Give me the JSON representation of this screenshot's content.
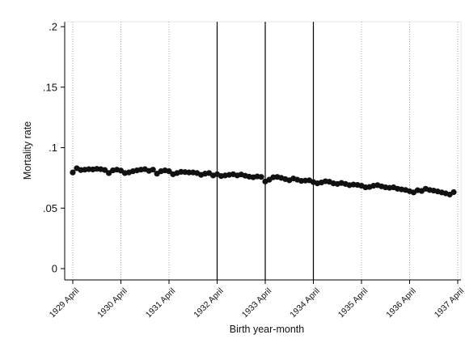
{
  "chart_data": {
    "type": "scatter",
    "title": "",
    "xlabel": "Birth year-month",
    "ylabel": "Mortality rate",
    "ylim": [
      0,
      0.2
    ],
    "y_ticks": [
      {
        "value": 0,
        "label": "0"
      },
      {
        "value": 0.05,
        "label": ".05"
      },
      {
        "value": 0.1,
        "label": ".1"
      },
      {
        "value": 0.15,
        "label": ".15"
      },
      {
        "value": 0.2,
        "label": ".2"
      }
    ],
    "x_ticks": [
      {
        "value": 0,
        "label": "1929 April"
      },
      {
        "value": 12,
        "label": "1930 April"
      },
      {
        "value": 24,
        "label": "1931 April"
      },
      {
        "value": 36,
        "label": "1932 April"
      },
      {
        "value": 48,
        "label": "1933 April"
      },
      {
        "value": 60,
        "label": "1934 April"
      },
      {
        "value": 72,
        "label": "1935 April"
      },
      {
        "value": 84,
        "label": "1936 April"
      },
      {
        "value": 96,
        "label": "1937 April"
      }
    ],
    "xlim": [
      -0.5,
      97
    ],
    "vertical_reference_lines": [
      "1932 April",
      "1933 April",
      "1934 April"
    ],
    "dotted_vertical_gridlines": true,
    "values": [
      0.0795,
      0.083,
      0.0815,
      0.0818,
      0.0822,
      0.082,
      0.0825,
      0.0822,
      0.0815,
      0.079,
      0.0812,
      0.0818,
      0.081,
      0.079,
      0.0795,
      0.0805,
      0.0812,
      0.0818,
      0.0822,
      0.0808,
      0.0818,
      0.0785,
      0.0805,
      0.0812,
      0.0805,
      0.078,
      0.079,
      0.08,
      0.0798,
      0.0795,
      0.0795,
      0.079,
      0.0775,
      0.0785,
      0.079,
      0.077,
      0.078,
      0.0765,
      0.077,
      0.0775,
      0.078,
      0.077,
      0.0778,
      0.0768,
      0.076,
      0.0755,
      0.0762,
      0.0758,
      0.072,
      0.0735,
      0.0755,
      0.0758,
      0.075,
      0.074,
      0.073,
      0.0745,
      0.0735,
      0.0725,
      0.0728,
      0.073,
      0.0715,
      0.0705,
      0.0712,
      0.0722,
      0.0718,
      0.0705,
      0.07,
      0.0708,
      0.07,
      0.069,
      0.0695,
      0.0692,
      0.0685,
      0.0672,
      0.0675,
      0.0685,
      0.069,
      0.068,
      0.0672,
      0.0668,
      0.0672,
      0.066,
      0.0655,
      0.065,
      0.064,
      0.063,
      0.0648,
      0.0642,
      0.066,
      0.065,
      0.0645,
      0.0638,
      0.063,
      0.0622,
      0.0612,
      0.0632
    ]
  }
}
